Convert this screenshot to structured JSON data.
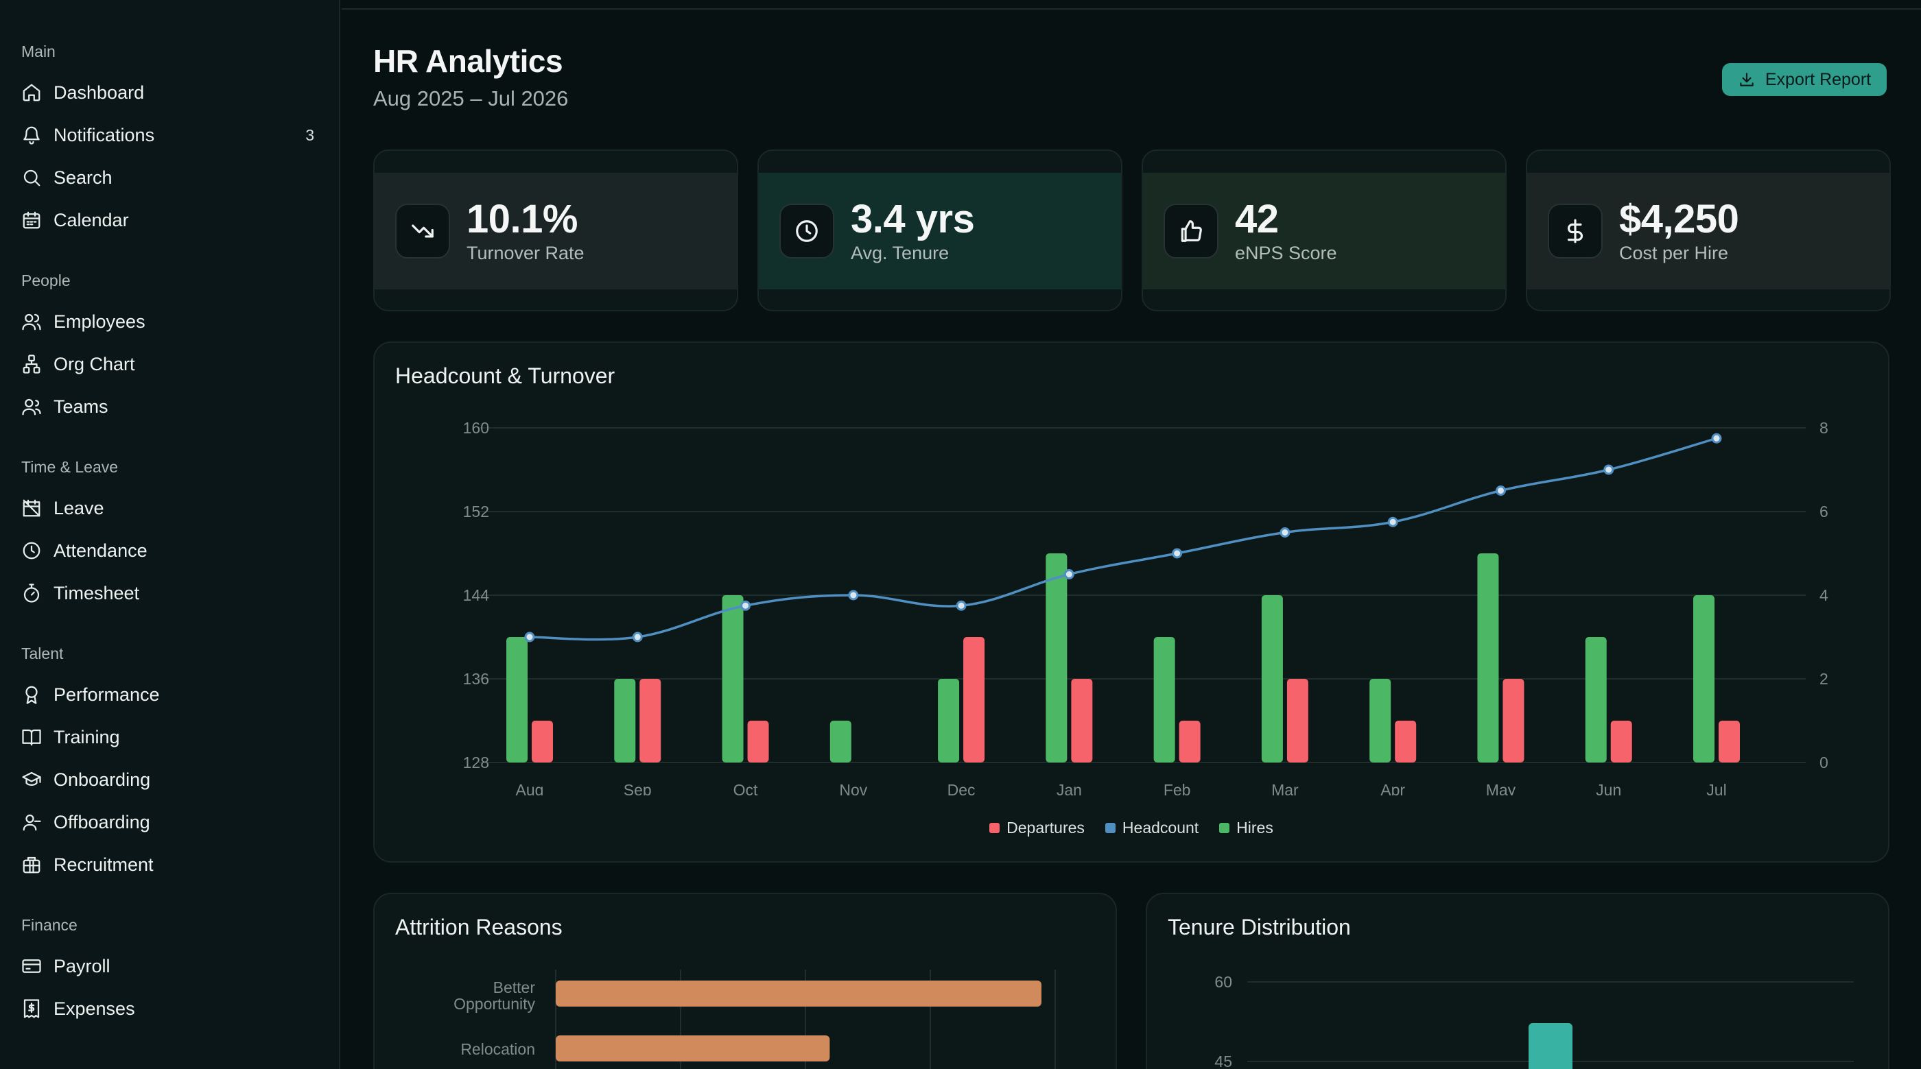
{
  "sidebar": {
    "sections": [
      {
        "heading": "Main",
        "items": [
          {
            "label": "Dashboard",
            "icon": "home-icon"
          },
          {
            "label": "Notifications",
            "icon": "bell-icon",
            "badge": "3"
          },
          {
            "label": "Search",
            "icon": "search-icon"
          },
          {
            "label": "Calendar",
            "icon": "calendar-icon"
          }
        ]
      },
      {
        "heading": "People",
        "items": [
          {
            "label": "Employees",
            "icon": "users-icon"
          },
          {
            "label": "Org Chart",
            "icon": "org-chart-icon"
          },
          {
            "label": "Teams",
            "icon": "team-icon"
          }
        ]
      },
      {
        "heading": "Time & Leave",
        "items": [
          {
            "label": "Leave",
            "icon": "calendar-off-icon"
          },
          {
            "label": "Attendance",
            "icon": "clock-icon"
          },
          {
            "label": "Timesheet",
            "icon": "stopwatch-icon"
          }
        ]
      },
      {
        "heading": "Talent",
        "items": [
          {
            "label": "Performance",
            "icon": "award-icon"
          },
          {
            "label": "Training",
            "icon": "book-icon"
          },
          {
            "label": "Onboarding",
            "icon": "graduation-cap-icon"
          },
          {
            "label": "Offboarding",
            "icon": "user-minus-icon"
          },
          {
            "label": "Recruitment",
            "icon": "briefcase-icon"
          }
        ]
      },
      {
        "heading": "Finance",
        "items": [
          {
            "label": "Payroll",
            "icon": "credit-card-icon"
          },
          {
            "label": "Expenses",
            "icon": "receipt-icon"
          }
        ]
      }
    ]
  },
  "header": {
    "title": "HR Analytics",
    "subtitle": "Aug 2025 – Jul 2026",
    "export_label": "Export Report"
  },
  "kpis": [
    {
      "value": "10.1%",
      "label": "Turnover Rate",
      "icon": "trending-down-icon",
      "band": "#1b2526"
    },
    {
      "value": "3.4 yrs",
      "label": "Avg. Tenure",
      "icon": "clock-icon",
      "band": "#11302b"
    },
    {
      "value": "42",
      "label": "eNPS Score",
      "icon": "thumbs-up-icon",
      "band": "#182a22"
    },
    {
      "value": "$4,250",
      "label": "Cost per Hire",
      "icon": "dollar-icon",
      "band": "#1c2523"
    }
  ],
  "colors": {
    "hires": "#4cb866",
    "departures": "#f7636a",
    "headcount": "#4f8fc2",
    "accent": "#2f9e8d",
    "attrition_bar": "#d08a5c",
    "tenure_bar": "#38b3a3"
  },
  "chart_data": [
    {
      "type": "bar",
      "title": "Headcount & Turnover",
      "categories": [
        "Aug",
        "Sep",
        "Oct",
        "Nov",
        "Dec",
        "Jan",
        "Feb",
        "Mar",
        "Apr",
        "May",
        "Jun",
        "Jul"
      ],
      "series": [
        {
          "name": "Hires",
          "axis": "right",
          "values": [
            3,
            2,
            4,
            1,
            2,
            5,
            3,
            4,
            2,
            5,
            3,
            4
          ]
        },
        {
          "name": "Departures",
          "axis": "right",
          "values": [
            1,
            2,
            1,
            0,
            3,
            2,
            1,
            2,
            1,
            2,
            1,
            1
          ]
        },
        {
          "name": "Headcount",
          "axis": "left",
          "type": "line",
          "values": [
            140,
            140,
            143,
            144,
            143,
            146,
            148,
            150,
            151,
            154,
            156,
            159
          ]
        }
      ],
      "ylim_left": [
        128,
        160
      ],
      "yticks_left": [
        "128",
        "136",
        "144",
        "152",
        "160"
      ],
      "ylim_right": [
        0,
        8
      ],
      "yticks_right": [
        "0",
        "2",
        "4",
        "6",
        "8"
      ],
      "legend": [
        "Departures",
        "Headcount",
        "Hires"
      ],
      "legend_position": "bottom-center",
      "grid": true
    },
    {
      "type": "bar",
      "orientation": "horizontal",
      "title": "Attrition Reasons",
      "categories": [
        "Better Opportunity",
        "Relocation"
      ],
      "values": [
        39,
        22
      ]
    },
    {
      "type": "bar",
      "title": "Tenure Distribution",
      "yticks": [
        "60",
        "45"
      ]
    }
  ]
}
